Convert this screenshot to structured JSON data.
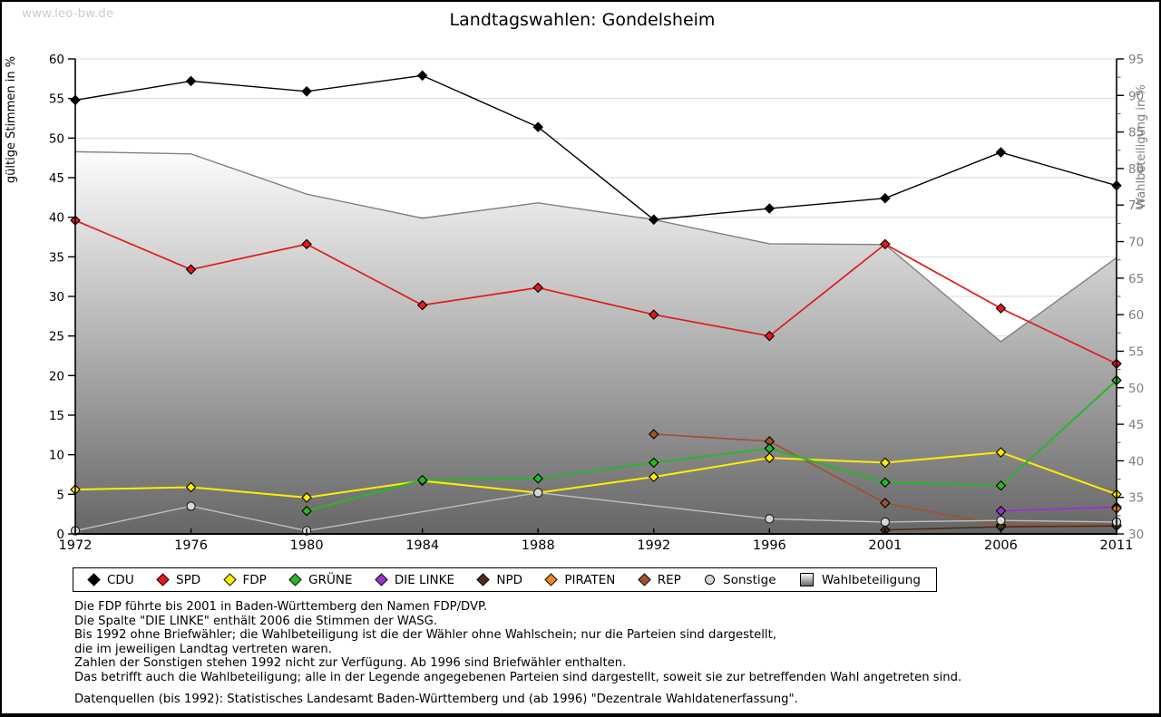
{
  "watermark": "www.leo-bw.de",
  "title": "Landtagswahlen: Gondelsheim",
  "chart_data": {
    "type": "line",
    "title": "Landtagswahlen: Gondelsheim",
    "categories": [
      "1972",
      "1976",
      "1980",
      "1984",
      "1988",
      "1992",
      "1996",
      "2001",
      "2006",
      "2011"
    ],
    "left_axis": {
      "label": "gültige Stimmen in %",
      "min": 0,
      "max": 60,
      "step": 5,
      "text_color": "#000000"
    },
    "right_axis": {
      "label": "Wahlbeteiligung in %",
      "min": 30,
      "max": 95,
      "step": 5,
      "minor_step": 2.5,
      "text_color": "#7e7e7e"
    },
    "grid": {
      "on": true,
      "color": "#d9d9d9"
    },
    "legend_position": "bottom",
    "series": [
      {
        "name": "CDU",
        "axis": "left",
        "marker": "diamond",
        "color": "#000000",
        "line_width": 1.4,
        "values": [
          54.8,
          57.2,
          55.9,
          57.9,
          51.4,
          39.7,
          41.1,
          42.4,
          48.2,
          44.0
        ]
      },
      {
        "name": "SPD",
        "axis": "left",
        "marker": "diamond",
        "color": "#e01b1b",
        "line_width": 1.7,
        "values": [
          39.6,
          33.4,
          36.6,
          28.9,
          31.1,
          27.7,
          25.0,
          36.6,
          28.5,
          21.5
        ]
      },
      {
        "name": "FDP",
        "axis": "left",
        "marker": "diamond",
        "color": "#ffee00",
        "line_width": 2.0,
        "values": [
          5.6,
          5.9,
          4.6,
          6.7,
          5.2,
          7.2,
          9.6,
          9.0,
          10.3,
          5.0
        ]
      },
      {
        "name": "GRÜNE",
        "axis": "left",
        "marker": "diamond",
        "color": "#2ab52a",
        "line_width": 2.0,
        "values": [
          null,
          null,
          2.9,
          6.8,
          7.0,
          9.0,
          10.8,
          6.5,
          6.1,
          19.4
        ]
      },
      {
        "name": "DIE LINKE",
        "axis": "left",
        "marker": "diamond",
        "color": "#9933cc",
        "line_width": 1.8,
        "values": [
          null,
          null,
          null,
          null,
          null,
          null,
          null,
          null,
          2.9,
          3.4
        ]
      },
      {
        "name": "NPD",
        "axis": "left",
        "marker": "diamond",
        "color": "#4f2d16",
        "line_width": 1.6,
        "values": [
          null,
          null,
          null,
          null,
          null,
          null,
          null,
          0.5,
          0.9,
          1.0
        ]
      },
      {
        "name": "PIRATEN",
        "axis": "left",
        "marker": "diamond",
        "color": "#ef8522",
        "line_width": 1.6,
        "values": [
          null,
          null,
          null,
          null,
          null,
          null,
          null,
          null,
          null,
          3.2
        ]
      },
      {
        "name": "REP",
        "axis": "left",
        "marker": "diamond",
        "color": "#a0522d",
        "line_width": 1.7,
        "values": [
          null,
          null,
          null,
          null,
          null,
          12.6,
          11.7,
          3.9,
          1.1,
          1.1
        ]
      },
      {
        "name": "Sonstige",
        "axis": "left",
        "marker": "circle",
        "color": "#d6d6d6",
        "line_color": "#bfbfbf",
        "line_width": 1.4,
        "values": [
          0.4,
          3.5,
          0.4,
          null,
          5.2,
          null,
          1.9,
          1.5,
          1.7,
          1.5
        ]
      },
      {
        "name": "Wahlbeteiligung",
        "axis": "right",
        "type": "area",
        "marker": "none",
        "color": "#808080",
        "gradient": [
          "#ffffff",
          "#666666"
        ],
        "line_width": 1.4,
        "values": [
          82.3,
          82.0,
          76.5,
          73.2,
          75.3,
          73.0,
          69.7,
          69.6,
          56.3,
          67.8
        ]
      }
    ],
    "z_order": [
      "Wahlbeteiligung",
      "REP",
      "NPD",
      "FDP",
      "GRÜNE",
      "Sonstige",
      "DIE LINKE",
      "PIRATEN",
      "SPD",
      "CDU"
    ]
  },
  "legend": {
    "items": [
      {
        "label": "CDU",
        "color": "#000000",
        "swatch": "diamond"
      },
      {
        "label": "SPD",
        "color": "#e01b1b",
        "swatch": "diamond"
      },
      {
        "label": "FDP",
        "color": "#ffee00",
        "swatch": "diamond"
      },
      {
        "label": "GRÜNE",
        "color": "#2ab52a",
        "swatch": "diamond"
      },
      {
        "label": "DIE LINKE",
        "color": "#9933cc",
        "swatch": "diamond"
      },
      {
        "label": "NPD",
        "color": "#4f2d16",
        "swatch": "diamond"
      },
      {
        "label": "PIRATEN",
        "color": "#ef8522",
        "swatch": "diamond"
      },
      {
        "label": "REP",
        "color": "#a0522d",
        "swatch": "diamond"
      },
      {
        "label": "Sonstige",
        "color": "#d6d6d6",
        "swatch": "circle"
      },
      {
        "label": "Wahlbeteiligung",
        "color": "#9a9a9a",
        "swatch": "gradient-square"
      }
    ]
  },
  "footnotes": [
    "Die FDP führte bis 2001 in Baden-Württemberg den Namen FDP/DVP.",
    "Die Spalte \"DIE LINKE\" enthält 2006 die Stimmen der WASG.",
    "Bis 1992 ohne Briefwähler; die Wahlbeteiligung ist die der Wähler ohne Wahlschein; nur die Parteien sind dargestellt,",
    "die im jeweiligen Landtag vertreten waren.",
    "Zahlen der Sonstigen stehen 1992 nicht zur Verfügung. Ab 1996 sind Briefwähler enthalten.",
    "Das betrifft auch die Wahlbeteiligung; alle in der Legende angegebenen Parteien sind dargestellt, soweit sie zur betreffenden Wahl angetreten sind."
  ],
  "source": "Datenquellen (bis 1992): Statistisches Landesamt Baden-Württemberg und (ab 1996) \"Dezentrale Wahldatenerfassung\"."
}
